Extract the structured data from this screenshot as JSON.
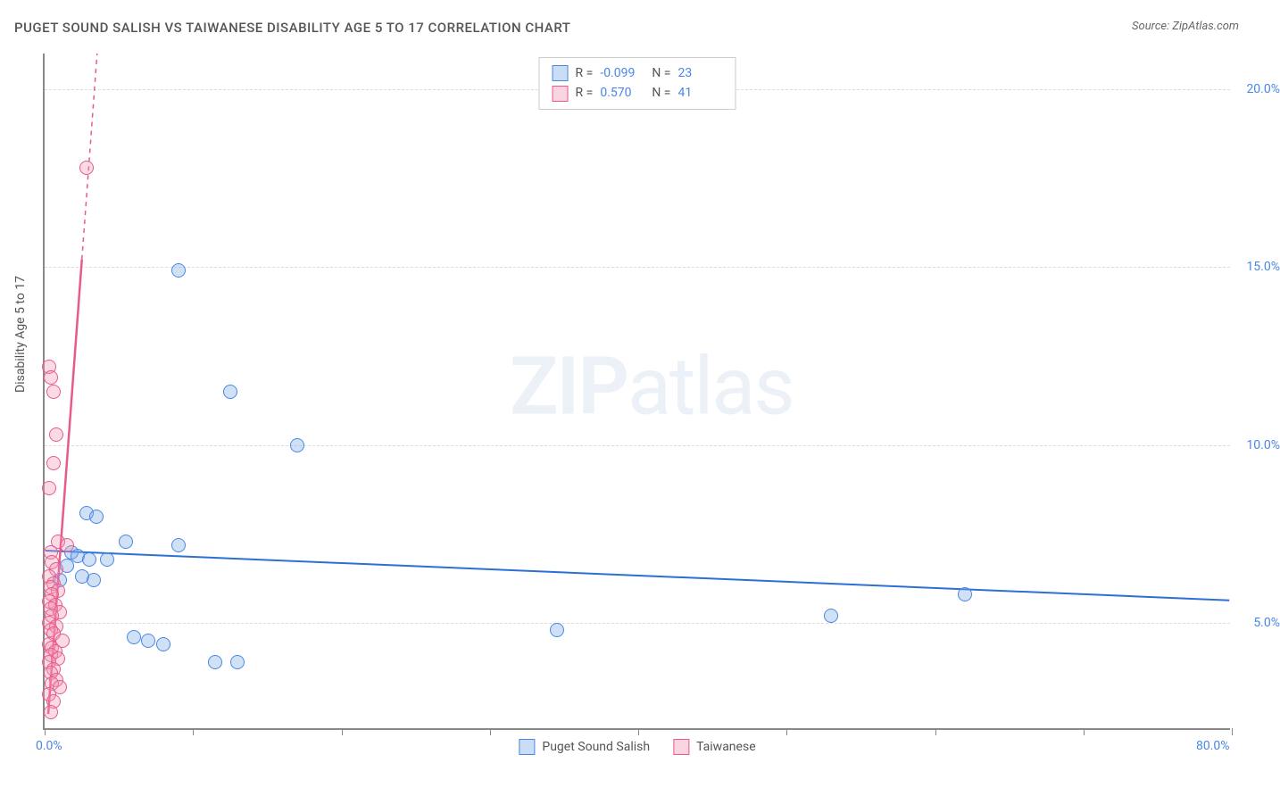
{
  "title": "PUGET SOUND SALISH VS TAIWANESE DISABILITY AGE 5 TO 17 CORRELATION CHART",
  "source": "Source: ZipAtlas.com",
  "y_axis_label": "Disability Age 5 to 17",
  "watermark_bold": "ZIP",
  "watermark_light": "atlas",
  "chart": {
    "type": "scatter",
    "xlim": [
      0,
      80
    ],
    "ylim": [
      2,
      21
    ],
    "x_ticks": [
      0,
      10,
      20,
      30,
      40,
      50,
      60,
      70,
      80
    ],
    "x_tick_labels_shown": {
      "0": "0.0%",
      "80": "80.0%"
    },
    "y_ticks": [
      5,
      10,
      15,
      20
    ],
    "y_tick_labels": {
      "5": "5.0%",
      "10": "10.0%",
      "15": "15.0%",
      "20": "20.0%"
    },
    "grid_color": "#dddddd",
    "background_color": "#ffffff",
    "axis_label_color": "#4a86e8",
    "series": [
      {
        "name": "Puget Sound Salish",
        "color_fill": "rgba(120,170,230,0.35)",
        "color_stroke": "#4a86e8",
        "marker_size": 16,
        "r": "-0.099",
        "n": "23",
        "trend_line": {
          "x1": 0,
          "y1": 7.0,
          "x2": 80,
          "y2": 5.6,
          "dashed": false
        },
        "points": [
          [
            9.0,
            14.9
          ],
          [
            12.5,
            11.5
          ],
          [
            17.0,
            10.0
          ],
          [
            2.8,
            8.1
          ],
          [
            3.5,
            8.0
          ],
          [
            5.5,
            7.3
          ],
          [
            9.0,
            7.2
          ],
          [
            1.8,
            7.0
          ],
          [
            2.2,
            6.9
          ],
          [
            3.0,
            6.8
          ],
          [
            4.2,
            6.8
          ],
          [
            1.5,
            6.6
          ],
          [
            2.5,
            6.3
          ],
          [
            3.3,
            6.2
          ],
          [
            1.0,
            6.2
          ],
          [
            62.0,
            5.8
          ],
          [
            53.0,
            5.2
          ],
          [
            34.5,
            4.8
          ],
          [
            6.0,
            4.6
          ],
          [
            7.0,
            4.5
          ],
          [
            8.0,
            4.4
          ],
          [
            11.5,
            3.9
          ],
          [
            13.0,
            3.9
          ]
        ]
      },
      {
        "name": "Taiwanese",
        "color_fill": "rgba(240,150,180,0.35)",
        "color_stroke": "#e85a8a",
        "marker_size": 16,
        "r": "0.570",
        "n": "41",
        "trend_line": {
          "x1": 0.2,
          "y1": 2.4,
          "x2": 3.5,
          "y2": 21,
          "dashed_above": 15.2
        },
        "points": [
          [
            2.8,
            17.8
          ],
          [
            0.3,
            12.2
          ],
          [
            0.4,
            11.9
          ],
          [
            0.6,
            11.5
          ],
          [
            0.8,
            10.3
          ],
          [
            0.6,
            9.5
          ],
          [
            0.3,
            8.8
          ],
          [
            0.9,
            7.3
          ],
          [
            1.5,
            7.2
          ],
          [
            0.4,
            7.0
          ],
          [
            0.5,
            6.7
          ],
          [
            0.8,
            6.5
          ],
          [
            0.3,
            6.3
          ],
          [
            0.6,
            6.1
          ],
          [
            0.4,
            6.0
          ],
          [
            0.9,
            5.9
          ],
          [
            0.5,
            5.8
          ],
          [
            0.3,
            5.6
          ],
          [
            0.7,
            5.5
          ],
          [
            0.4,
            5.4
          ],
          [
            1.0,
            5.3
          ],
          [
            0.5,
            5.2
          ],
          [
            0.3,
            5.0
          ],
          [
            0.8,
            4.9
          ],
          [
            0.4,
            4.8
          ],
          [
            0.6,
            4.7
          ],
          [
            1.2,
            4.5
          ],
          [
            0.3,
            4.4
          ],
          [
            0.5,
            4.3
          ],
          [
            0.7,
            4.2
          ],
          [
            0.4,
            4.1
          ],
          [
            0.9,
            4.0
          ],
          [
            0.3,
            3.9
          ],
          [
            0.6,
            3.7
          ],
          [
            0.4,
            3.6
          ],
          [
            0.8,
            3.4
          ],
          [
            0.5,
            3.3
          ],
          [
            1.0,
            3.2
          ],
          [
            0.3,
            3.0
          ],
          [
            0.6,
            2.8
          ],
          [
            0.4,
            2.5
          ]
        ]
      }
    ]
  },
  "stats_labels": {
    "r_prefix": "R = ",
    "n_prefix": "N = "
  }
}
